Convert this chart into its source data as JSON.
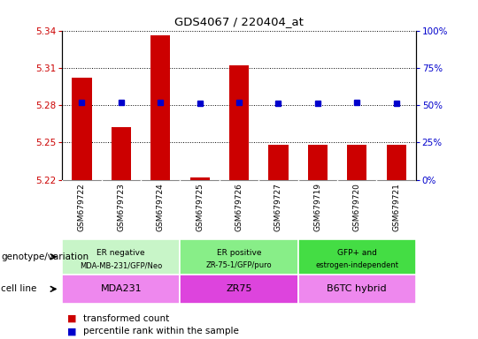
{
  "title": "GDS4067 / 220404_at",
  "samples": [
    "GSM679722",
    "GSM679723",
    "GSM679724",
    "GSM679725",
    "GSM679726",
    "GSM679727",
    "GSM679719",
    "GSM679720",
    "GSM679721"
  ],
  "red_values": [
    5.302,
    5.262,
    5.336,
    5.222,
    5.312,
    5.248,
    5.248,
    5.248,
    5.248
  ],
  "blue_values": [
    52,
    52,
    52,
    51,
    52,
    51,
    51,
    52,
    51
  ],
  "ylim": [
    5.22,
    5.34
  ],
  "yticks": [
    5.22,
    5.25,
    5.28,
    5.31,
    5.34
  ],
  "y2lim": [
    0,
    100
  ],
  "y2ticks": [
    0,
    25,
    50,
    75,
    100
  ],
  "y2ticklabels": [
    "0%",
    "25%",
    "50%",
    "75%",
    "100%"
  ],
  "ytick_color": "#cc0000",
  "y2tick_color": "#0000cc",
  "bar_color": "#cc0000",
  "dot_color": "#0000cc",
  "groups": [
    {
      "label": "ER negative\nMDA-MB-231/GFP/Neo",
      "start": 0,
      "end": 3,
      "color": "#c8f5c8"
    },
    {
      "label": "ER positive\nZR-75-1/GFP/puro",
      "start": 3,
      "end": 6,
      "color": "#88ee88"
    },
    {
      "label": "GFP+ and\nestrogen-independent",
      "start": 6,
      "end": 9,
      "color": "#44dd44"
    }
  ],
  "cell_lines": [
    {
      "label": "MDA231",
      "start": 0,
      "end": 3,
      "color": "#ee88ee"
    },
    {
      "label": "ZR75",
      "start": 3,
      "end": 6,
      "color": "#dd44dd"
    },
    {
      "label": "B6TC hybrid",
      "start": 6,
      "end": 9,
      "color": "#ee88ee"
    }
  ],
  "legend_items": [
    {
      "color": "#cc0000",
      "label": "transformed count"
    },
    {
      "color": "#0000cc",
      "label": "percentile rank within the sample"
    }
  ],
  "row_labels": [
    "genotype/variation",
    "cell line"
  ],
  "sample_bg_color": "#d8d8d8",
  "border_color": "#888888"
}
